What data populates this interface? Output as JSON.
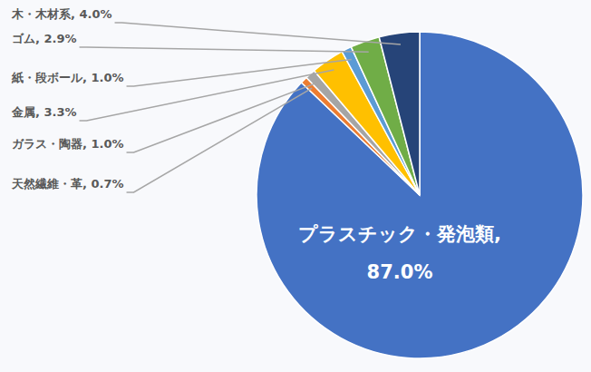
{
  "chart_data": {
    "type": "pie",
    "categories": [
      "プラスチック・発泡類",
      "天然繊維・革",
      "ガラス・陶器",
      "金属",
      "紙・段ボール",
      "ゴム",
      "木・木材系"
    ],
    "values": [
      87.0,
      0.7,
      1.0,
      3.3,
      1.0,
      2.9,
      4.0
    ],
    "value_labels": [
      "プラスチック・発泡類, 87.0%",
      "天然繊維・革, 0.7%",
      "ガラス・陶器, 1.0%",
      "金属, 3.3%",
      "紙・段ボール, 1.0%",
      "ゴム, 2.9%",
      "木・木材系, 4.0%"
    ],
    "colors": [
      "#4472c4",
      "#ed7d31",
      "#a5a5a5",
      "#ffc000",
      "#5b9bd5",
      "#70ad47",
      "#264478"
    ],
    "data_labels": true
  }
}
